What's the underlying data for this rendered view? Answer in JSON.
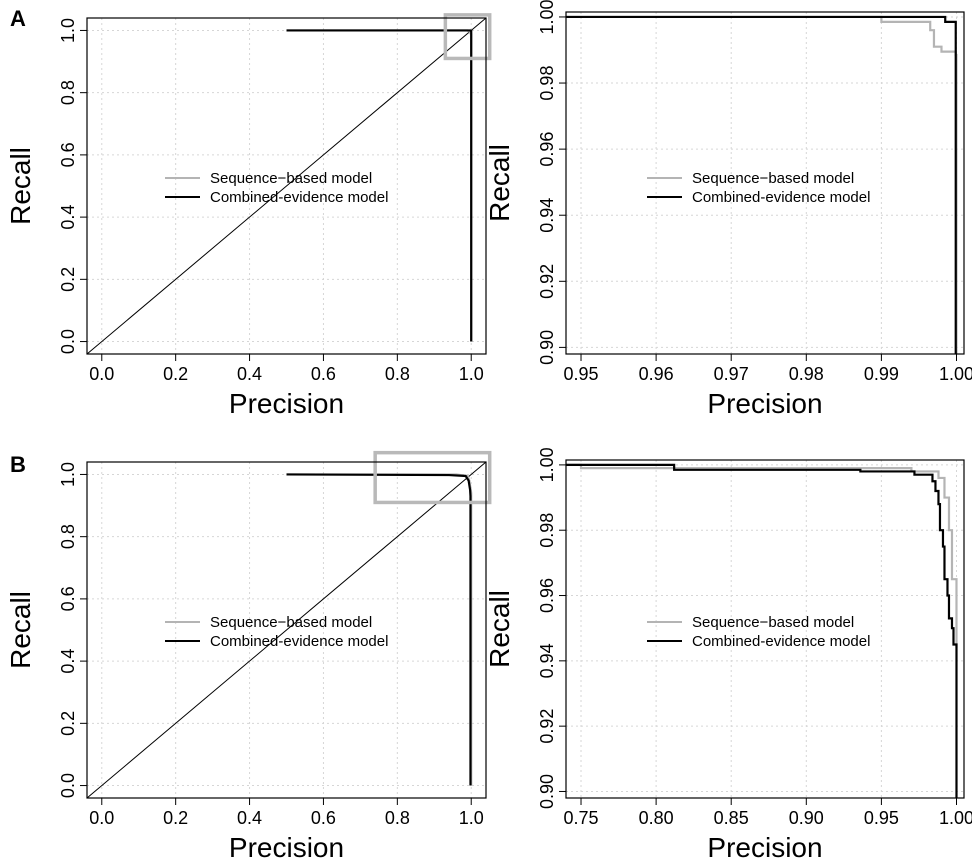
{
  "panels": [
    {
      "label": "A"
    },
    {
      "label": "B"
    }
  ],
  "colors": {
    "sequence": "#b4b4b4",
    "combined": "#000000",
    "grid": "#d6d6d6",
    "zoom_box": "#b9b9b9",
    "diagonal": "#000000"
  },
  "chart_data": [
    {
      "type": "line",
      "panel": "A",
      "xlabel": "Precision",
      "ylabel": "Recall",
      "xlim": [
        -0.04,
        1.04
      ],
      "ylim": [
        -0.04,
        1.04
      ],
      "xticks": [
        "0.0",
        "0.2",
        "0.4",
        "0.6",
        "0.8",
        "1.0"
      ],
      "yticks": [
        "0.0",
        "0.2",
        "0.4",
        "0.6",
        "0.8",
        "1.0"
      ],
      "grid": true,
      "legend": "center",
      "legend_entries": [
        "Sequence−based model",
        "Combined-evidence model"
      ],
      "reference_line": {
        "x": [
          -0.04,
          1.04
        ],
        "y": [
          -0.04,
          1.04
        ]
      },
      "zoom_box": {
        "x": [
          0.93,
          1.05
        ],
        "y": [
          0.91,
          1.05
        ]
      },
      "series": [
        {
          "name": "Sequence−based model",
          "x": [
            0.5,
            0.99,
            0.997,
            0.998,
            1.0,
            1.0
          ],
          "y": [
            1.0,
            1.0,
            0.995,
            0.99,
            0.988,
            0.0
          ]
        },
        {
          "name": "Combined-evidence model",
          "x": [
            0.5,
            0.998,
            0.999,
            1.0,
            1.0
          ],
          "y": [
            1.0,
            1.0,
            0.998,
            0.998,
            0.0
          ]
        }
      ]
    },
    {
      "type": "line",
      "panel": "A-zoom",
      "xlabel": "Precision",
      "ylabel": "Recall",
      "xlim": [
        0.948,
        1.001
      ],
      "ylim": [
        0.898,
        1.0015
      ],
      "xticks": [
        "0.95",
        "0.96",
        "0.97",
        "0.98",
        "0.99",
        "1.00"
      ],
      "yticks": [
        "0.90",
        "0.92",
        "0.94",
        "0.96",
        "0.98",
        "1.00"
      ],
      "grid": true,
      "legend": "center",
      "legend_entries": [
        "Sequence−based model",
        "Combined-evidence model"
      ],
      "series": [
        {
          "name": "Sequence−based model",
          "x": [
            0.948,
            0.99,
            0.99,
            0.9965,
            0.9965,
            0.997,
            0.997,
            0.998,
            0.998,
            0.9999,
            0.9999,
            1.0,
            1.0
          ],
          "y": [
            1.0,
            1.0,
            0.9985,
            0.9985,
            0.996,
            0.996,
            0.991,
            0.991,
            0.9895,
            0.9895,
            0.9885,
            0.9885,
            0.898
          ]
        },
        {
          "name": "Combined-evidence model",
          "x": [
            0.948,
            0.9985,
            0.9985,
            0.9999,
            0.9999
          ],
          "y": [
            1.0,
            1.0,
            0.9985,
            0.9985,
            0.898
          ]
        }
      ]
    },
    {
      "type": "line",
      "panel": "B",
      "xlabel": "Precision",
      "ylabel": "Recall",
      "xlim": [
        -0.04,
        1.04
      ],
      "ylim": [
        -0.04,
        1.04
      ],
      "xticks": [
        "0.0",
        "0.2",
        "0.4",
        "0.6",
        "0.8",
        "1.0"
      ],
      "yticks": [
        "0.0",
        "0.2",
        "0.4",
        "0.6",
        "0.8",
        "1.0"
      ],
      "grid": true,
      "legend": "center",
      "legend_entries": [
        "Sequence−based model",
        "Combined-evidence model"
      ],
      "reference_line": {
        "x": [
          -0.04,
          1.04
        ],
        "y": [
          -0.04,
          1.04
        ]
      },
      "zoom_box": {
        "x": [
          0.74,
          1.05
        ],
        "y": [
          0.91,
          1.07
        ]
      },
      "series": [
        {
          "name": "Sequence−based model",
          "x": [
            0.5,
            0.96,
            0.99,
            0.995,
            1.0,
            1.0
          ],
          "y": [
            1.0,
            1.0,
            0.995,
            0.98,
            0.94,
            0.0
          ]
        },
        {
          "name": "Combined-evidence model",
          "x": [
            0.5,
            0.94,
            0.985,
            0.993,
            0.997,
            0.998,
            0.998
          ],
          "y": [
            1.0,
            0.998,
            0.995,
            0.98,
            0.95,
            0.93,
            0.0
          ]
        }
      ]
    },
    {
      "type": "line",
      "panel": "B-zoom",
      "xlabel": "Precision",
      "ylabel": "Recall",
      "xlim": [
        0.74,
        1.005
      ],
      "ylim": [
        0.898,
        1.0015
      ],
      "xticks": [
        "0.75",
        "0.80",
        "0.85",
        "0.90",
        "0.95",
        "1.00"
      ],
      "yticks": [
        "0.90",
        "0.92",
        "0.94",
        "0.96",
        "0.98",
        "1.00"
      ],
      "grid": true,
      "legend": "center",
      "legend_entries": [
        "Sequence−based model",
        "Combined-evidence model"
      ],
      "series": [
        {
          "name": "Sequence−based model",
          "x": [
            0.74,
            0.75,
            0.75,
            0.97,
            0.97,
            0.988,
            0.988,
            0.992,
            0.992,
            0.995,
            0.995,
            0.997,
            0.997,
            1.0,
            1.0
          ],
          "y": [
            1.0,
            1.0,
            0.999,
            0.999,
            0.998,
            0.998,
            0.996,
            0.996,
            0.99,
            0.99,
            0.98,
            0.98,
            0.965,
            0.965,
            0.944
          ]
        },
        {
          "name": "Combined-evidence model",
          "x": [
            0.74,
            0.812,
            0.812,
            0.936,
            0.936,
            0.972,
            0.972,
            0.984,
            0.984,
            0.986,
            0.986,
            0.988,
            0.988,
            0.989,
            0.989,
            0.991,
            0.991,
            0.992,
            0.992,
            0.994,
            0.994,
            0.995,
            0.995,
            0.997,
            0.997,
            0.998,
            0.998,
            1.0,
            1.0
          ],
          "y": [
            1.0,
            1.0,
            0.9985,
            0.9985,
            0.998,
            0.998,
            0.997,
            0.997,
            0.995,
            0.995,
            0.992,
            0.992,
            0.988,
            0.988,
            0.98,
            0.98,
            0.975,
            0.975,
            0.965,
            0.965,
            0.96,
            0.96,
            0.953,
            0.953,
            0.95,
            0.95,
            0.945,
            0.945,
            0.898
          ]
        }
      ]
    }
  ]
}
